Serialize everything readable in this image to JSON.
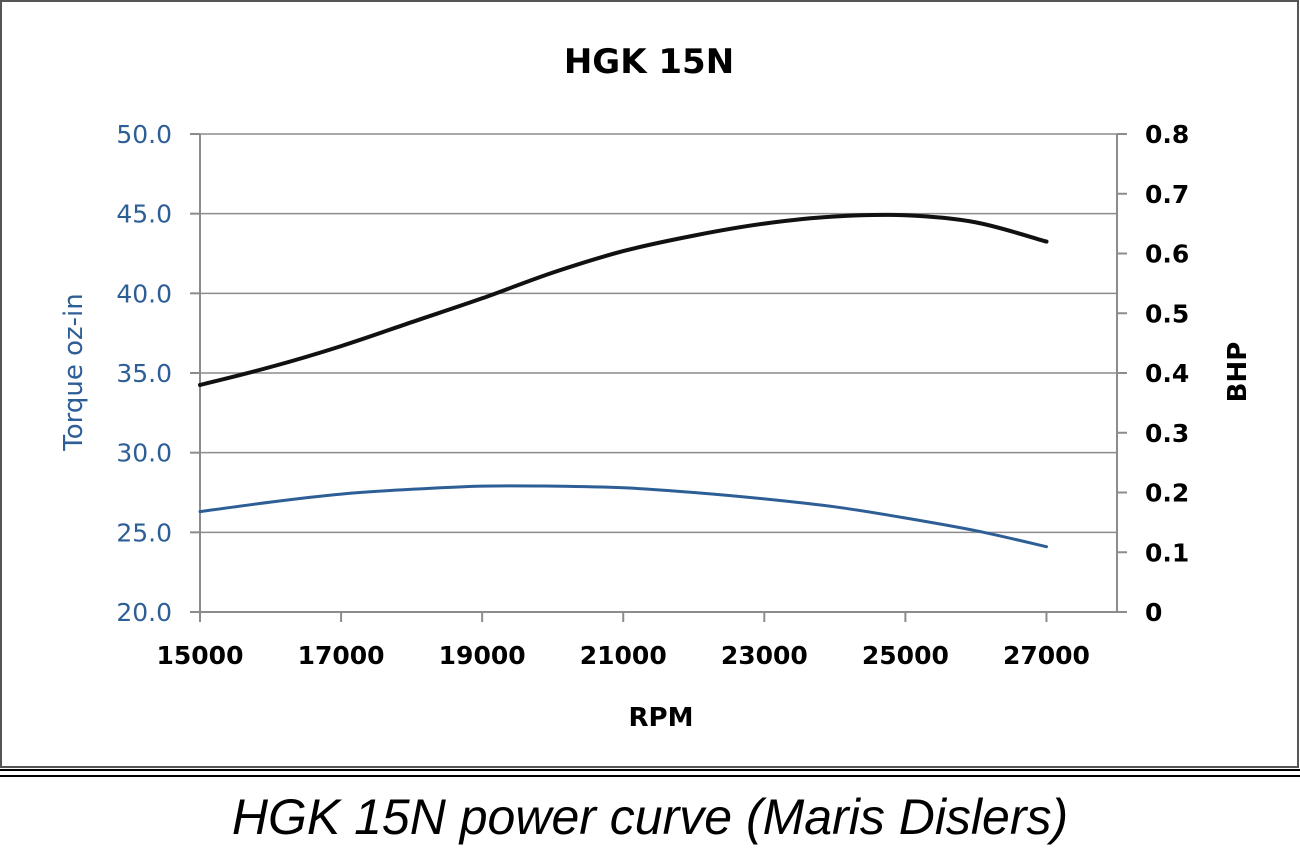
{
  "chart_data": {
    "type": "line",
    "title": "HGK 15N",
    "xlabel": "RPM",
    "ylabel_left": "Torque oz-in",
    "ylabel_right": "BHP",
    "xlim": [
      15000,
      28000
    ],
    "ylim_left": [
      20.0,
      50.0
    ],
    "ylim_right": [
      0,
      0.8
    ],
    "x_ticks": [
      "15000",
      "17000",
      "19000",
      "21000",
      "23000",
      "25000",
      "27000"
    ],
    "y_left_ticks": [
      "20.0",
      "25.0",
      "30.0",
      "35.0",
      "40.0",
      "45.0",
      "50.0"
    ],
    "y_right_ticks": [
      "0",
      "0.1",
      "0.2",
      "0.3",
      "0.4",
      "0.5",
      "0.6",
      "0.7",
      "0.8"
    ],
    "grid": true,
    "series": [
      {
        "axis": "left",
        "color": "#2e5e96",
        "x": [
          15000,
          16000,
          17000,
          18000,
          19000,
          20000,
          21000,
          22000,
          23000,
          24000,
          25000,
          26000,
          27000
        ],
        "values": [
          26.3,
          26.9,
          27.4,
          27.7,
          27.9,
          27.9,
          27.8,
          27.5,
          27.1,
          26.6,
          25.9,
          25.1,
          24.1
        ]
      },
      {
        "axis": "right",
        "color": "#111111",
        "x": [
          15000,
          16000,
          17000,
          18000,
          19000,
          20000,
          21000,
          22000,
          23000,
          24000,
          25000,
          26000,
          27000
        ],
        "values": [
          0.38,
          0.41,
          0.445,
          0.485,
          0.525,
          0.568,
          0.604,
          0.63,
          0.65,
          0.662,
          0.664,
          0.652,
          0.62
        ]
      }
    ]
  },
  "caption": "HGK 15N power curve (Maris Dislers)"
}
